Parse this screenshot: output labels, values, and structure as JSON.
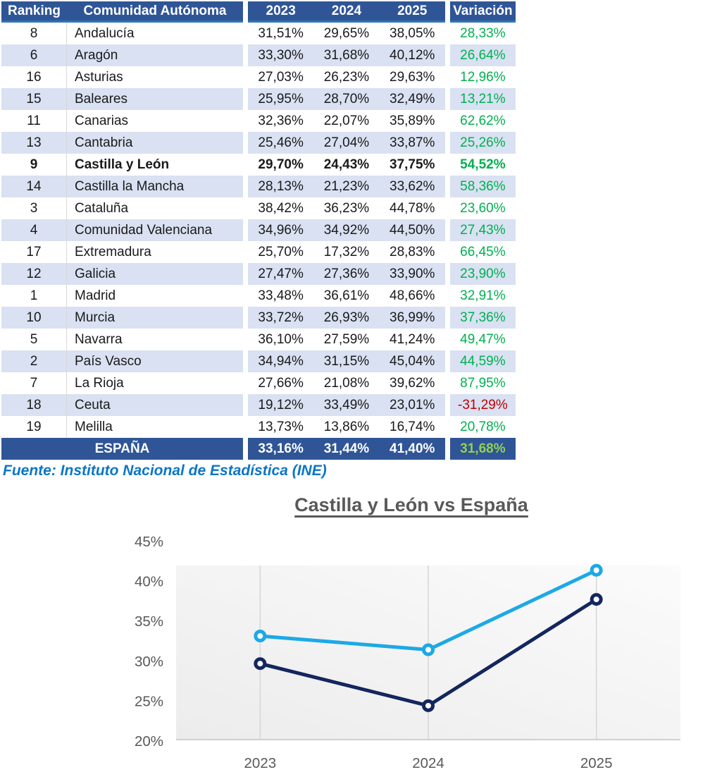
{
  "table": {
    "headers": {
      "ranking": "Ranking",
      "community": "Comunidad Autónoma",
      "y2023": "2023",
      "y2024": "2024",
      "y2025": "2025",
      "variation": "Variación"
    },
    "rows": [
      {
        "ranking": "8",
        "name": "Andalucía",
        "y2023": "31,51%",
        "y2024": "29,65%",
        "y2025": "38,05%",
        "variation": "28,33%"
      },
      {
        "ranking": "6",
        "name": "Aragón",
        "y2023": "33,30%",
        "y2024": "31,68%",
        "y2025": "40,12%",
        "variation": "26,64%"
      },
      {
        "ranking": "16",
        "name": "Asturias",
        "y2023": "27,03%",
        "y2024": "26,23%",
        "y2025": "29,63%",
        "variation": "12,96%"
      },
      {
        "ranking": "15",
        "name": "Baleares",
        "y2023": "25,95%",
        "y2024": "28,70%",
        "y2025": "32,49%",
        "variation": "13,21%"
      },
      {
        "ranking": "11",
        "name": "Canarias",
        "y2023": "32,36%",
        "y2024": "22,07%",
        "y2025": "35,89%",
        "variation": "62,62%"
      },
      {
        "ranking": "13",
        "name": "Cantabria",
        "y2023": "25,46%",
        "y2024": "27,04%",
        "y2025": "33,87%",
        "variation": "25,26%"
      },
      {
        "ranking": "9",
        "name": "Castilla y León",
        "y2023": "29,70%",
        "y2024": "24,43%",
        "y2025": "37,75%",
        "variation": "54,52%",
        "highlight": true
      },
      {
        "ranking": "14",
        "name": "Castilla la Mancha",
        "y2023": "28,13%",
        "y2024": "21,23%",
        "y2025": "33,62%",
        "variation": "58,36%"
      },
      {
        "ranking": "3",
        "name": "Cataluña",
        "y2023": "38,42%",
        "y2024": "36,23%",
        "y2025": "44,78%",
        "variation": "23,60%"
      },
      {
        "ranking": "4",
        "name": "Comunidad Valenciana",
        "y2023": "34,96%",
        "y2024": "34,92%",
        "y2025": "44,50%",
        "variation": "27,43%"
      },
      {
        "ranking": "17",
        "name": "Extremadura",
        "y2023": "25,70%",
        "y2024": "17,32%",
        "y2025": "28,83%",
        "variation": "66,45%"
      },
      {
        "ranking": "12",
        "name": "Galicia",
        "y2023": "27,47%",
        "y2024": "27,36%",
        "y2025": "33,90%",
        "variation": "23,90%"
      },
      {
        "ranking": "1",
        "name": "Madrid",
        "y2023": "33,48%",
        "y2024": "36,61%",
        "y2025": "48,66%",
        "variation": "32,91%"
      },
      {
        "ranking": "10",
        "name": "Murcia",
        "y2023": "33,72%",
        "y2024": "26,93%",
        "y2025": "36,99%",
        "variation": "37,36%"
      },
      {
        "ranking": "5",
        "name": "Navarra",
        "y2023": "36,10%",
        "y2024": "27,59%",
        "y2025": "41,24%",
        "variation": "49,47%"
      },
      {
        "ranking": "2",
        "name": "País Vasco",
        "y2023": "34,94%",
        "y2024": "31,15%",
        "y2025": "45,04%",
        "variation": "44,59%"
      },
      {
        "ranking": "7",
        "name": "La Rioja",
        "y2023": "27,66%",
        "y2024": "21,08%",
        "y2025": "39,62%",
        "variation": "87,95%"
      },
      {
        "ranking": "18",
        "name": "Ceuta",
        "y2023": "19,12%",
        "y2024": "33,49%",
        "y2025": "23,01%",
        "variation": "-31,29%",
        "negative": true
      },
      {
        "ranking": "19",
        "name": "Melilla",
        "y2023": "13,73%",
        "y2024": "13,86%",
        "y2025": "16,74%",
        "variation": "20,78%"
      }
    ],
    "total": {
      "name": "ESPAÑA",
      "y2023": "33,16%",
      "y2024": "31,44%",
      "y2025": "41,40%",
      "variation": "31,68%"
    }
  },
  "source": "Fuente: Instituto Nacional de Estadística (INE)",
  "chart_data": {
    "type": "line",
    "title": "Castilla y León vs España",
    "x": [
      "2023",
      "2024",
      "2025"
    ],
    "series": [
      {
        "name": "España",
        "values": [
          33.16,
          31.44,
          41.4
        ],
        "color": "#1CA9E6"
      },
      {
        "name": "Castilla y León",
        "values": [
          29.7,
          24.43,
          37.75
        ],
        "color": "#13265E"
      }
    ],
    "ylim": [
      20,
      45
    ],
    "yticks": [
      45,
      40,
      35,
      30,
      25,
      20
    ],
    "ytick_suffix": "%",
    "grid": "vertical-only",
    "legend": "none",
    "marker": "ring"
  },
  "colors": {
    "header_bg": "#2F5597",
    "header_underline": "#2E75B6",
    "stripe": "#D9E1F2",
    "body_text": "#1A1A1A",
    "positive": "#00B050",
    "negative": "#C00000",
    "total_variation": "#92D050",
    "source_text": "#0B76C6",
    "chart_title": "#595959",
    "axis_label": "#595959",
    "gridline": "#D6D6D6",
    "axis_line": "#C3C3C3",
    "plot_bg_from": "#ECECEC",
    "plot_bg_to": "#FBFBFB"
  }
}
